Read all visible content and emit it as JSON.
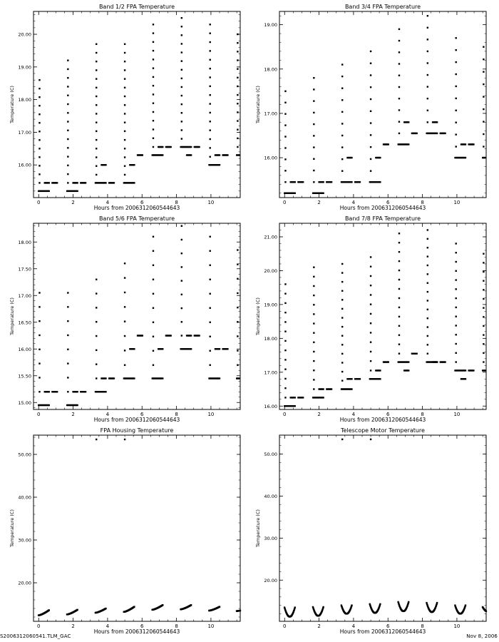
{
  "page": {
    "footer_left": "S2006312060541.TLM_GAC",
    "footer_right": "Nov  8, 2006"
  },
  "chart_data": [
    {
      "type": "scatter",
      "title": "Band 1/2 FPA Temperature",
      "xlabel": "Hours from 2006312060544643",
      "ylabel": "Temperature (C)",
      "xlim": [
        -0.3,
        11.7
      ],
      "ylim": [
        15.0,
        20.7
      ],
      "xticks": [
        0,
        2,
        4,
        6,
        8,
        10
      ],
      "xtick_labels": [
        "0",
        "2",
        "4",
        "6",
        "8",
        "10"
      ],
      "yticks": [
        16,
        17,
        18,
        19,
        20
      ],
      "ytick_labels": [
        "16.00",
        "17.00",
        "18.00",
        "19.00",
        "20.00"
      ],
      "cycle_period_h": 1.65,
      "cycles": [
        {
          "t": 0.05,
          "floor": 15.2,
          "ramp_top": 18.6,
          "step": 15.45,
          "plateau": 15.45
        },
        {
          "t": 1.7,
          "floor": 15.2,
          "ramp_top": 19.2,
          "step": 15.45,
          "plateau": 15.45
        },
        {
          "t": 3.35,
          "floor": 15.45,
          "ramp_top": 19.7,
          "step": 16.0,
          "plateau": 15.45
        },
        {
          "t": 5.0,
          "floor": 15.45,
          "ramp_top": 19.7,
          "step": 16.0,
          "plateau": 16.3
        },
        {
          "t": 6.65,
          "floor": 16.3,
          "ramp_top": 20.3,
          "step": 16.55,
          "plateau": 16.55
        },
        {
          "t": 8.3,
          "floor": 16.55,
          "ramp_top": 20.5,
          "step": 16.3,
          "plateau": 16.55
        },
        {
          "t": 9.95,
          "floor": 16.0,
          "ramp_top": 20.3,
          "step": 16.3,
          "plateau": 16.3
        },
        {
          "t": 11.55,
          "floor": 16.3,
          "ramp_top": 20.0,
          "step": 16.3,
          "plateau": 16.3
        }
      ]
    },
    {
      "type": "scatter",
      "title": "Band 3/4 FPA Temperature",
      "xlabel": "Hours from 2006312060544643",
      "ylabel": "Temperature (C)",
      "xlim": [
        -0.3,
        11.7
      ],
      "ylim": [
        15.1,
        19.3
      ],
      "xticks": [
        0,
        2,
        4,
        6,
        8,
        10
      ],
      "xtick_labels": [
        "0",
        "2",
        "4",
        "6",
        "8",
        "10"
      ],
      "yticks": [
        16,
        17,
        18,
        19
      ],
      "ytick_labels": [
        "16.00",
        "17.00",
        "18.00",
        "19.00"
      ],
      "cycle_period_h": 1.65,
      "cycles": [
        {
          "t": 0.05,
          "floor": 15.2,
          "ramp_top": 17.5,
          "step": 15.45,
          "plateau": 15.45
        },
        {
          "t": 1.7,
          "floor": 15.2,
          "ramp_top": 17.8,
          "step": 15.45,
          "plateau": 15.45
        },
        {
          "t": 3.35,
          "floor": 15.45,
          "ramp_top": 18.1,
          "step": 16.0,
          "plateau": 15.45
        },
        {
          "t": 5.0,
          "floor": 15.45,
          "ramp_top": 18.4,
          "step": 16.0,
          "plateau": 16.3
        },
        {
          "t": 6.65,
          "floor": 16.3,
          "ramp_top": 18.9,
          "step": 16.8,
          "plateau": 16.55
        },
        {
          "t": 8.3,
          "floor": 16.55,
          "ramp_top": 19.2,
          "step": 16.8,
          "plateau": 16.55
        },
        {
          "t": 9.95,
          "floor": 16.0,
          "ramp_top": 18.7,
          "step": 16.3,
          "plateau": 16.3
        },
        {
          "t": 11.55,
          "floor": 16.0,
          "ramp_top": 18.5,
          "step": 16.3,
          "plateau": 16.3
        }
      ]
    },
    {
      "type": "scatter",
      "title": "Band 5/6 FPA Temperature",
      "xlabel": "Hours from 2006312060544643",
      "ylabel": "Temperature (C)",
      "xlim": [
        -0.3,
        11.7
      ],
      "ylim": [
        14.87,
        18.35
      ],
      "xticks": [
        0,
        2,
        4,
        6,
        8,
        10
      ],
      "xtick_labels": [
        "0",
        "2",
        "4",
        "6",
        "8",
        "10"
      ],
      "yticks": [
        15,
        15.5,
        16,
        16.5,
        17,
        17.5,
        18
      ],
      "ytick_labels": [
        "15.00",
        "15.50",
        "16.00",
        "16.50",
        "17.00",
        "17.50",
        "18.00"
      ],
      "cycle_period_h": 1.65,
      "cycles": [
        {
          "t": 0.05,
          "floor": 14.95,
          "ramp_top": 17.05,
          "step": 15.2,
          "plateau": 15.2
        },
        {
          "t": 1.7,
          "floor": 14.95,
          "ramp_top": 17.05,
          "step": 15.2,
          "plateau": 15.2
        },
        {
          "t": 3.35,
          "floor": 15.2,
          "ramp_top": 17.3,
          "step": 15.45,
          "plateau": 15.45
        },
        {
          "t": 5.0,
          "floor": 15.45,
          "ramp_top": 17.6,
          "step": 16.0,
          "plateau": 16.25
        },
        {
          "t": 6.65,
          "floor": 15.45,
          "ramp_top": 18.1,
          "step": 16.0,
          "plateau": 16.25
        },
        {
          "t": 8.3,
          "floor": 16.0,
          "ramp_top": 18.3,
          "step": 16.25,
          "plateau": 16.25
        },
        {
          "t": 9.95,
          "floor": 15.45,
          "ramp_top": 18.1,
          "step": 16.0,
          "plateau": 16.0
        },
        {
          "t": 11.55,
          "floor": 15.45,
          "ramp_top": 17.85,
          "step": 16.0,
          "plateau": 16.0
        }
      ]
    },
    {
      "type": "scatter",
      "title": "Band 7/8 FPA Temperature",
      "xlabel": "Hours from 2006312060544643",
      "ylabel": "Temperature (C)",
      "xlim": [
        -0.3,
        11.7
      ],
      "ylim": [
        15.9,
        21.4
      ],
      "xticks": [
        0,
        2,
        4,
        6,
        8,
        10
      ],
      "xtick_labels": [
        "0",
        "2",
        "4",
        "6",
        "8",
        "10"
      ],
      "yticks": [
        16,
        17,
        18,
        19,
        20,
        21
      ],
      "ytick_labels": [
        "16.00",
        "17.00",
        "18.00",
        "19.00",
        "20.00",
        "21.00"
      ],
      "cycle_period_h": 1.65,
      "cycles": [
        {
          "t": 0.05,
          "floor": 16.0,
          "ramp_top": 19.6,
          "step": 16.25,
          "plateau": 16.25
        },
        {
          "t": 1.7,
          "floor": 16.25,
          "ramp_top": 20.1,
          "step": 16.5,
          "plateau": 16.5
        },
        {
          "t": 3.35,
          "floor": 16.5,
          "ramp_top": 20.2,
          "step": 16.8,
          "plateau": 16.8
        },
        {
          "t": 5.0,
          "floor": 16.8,
          "ramp_top": 20.4,
          "step": 17.05,
          "plateau": 17.3
        },
        {
          "t": 6.65,
          "floor": 17.3,
          "ramp_top": 21.1,
          "step": 17.05,
          "plateau": 17.55
        },
        {
          "t": 8.3,
          "floor": 17.3,
          "ramp_top": 21.2,
          "step": 17.3,
          "plateau": 17.3
        },
        {
          "t": 9.95,
          "floor": 17.05,
          "ramp_top": 20.8,
          "step": 16.8,
          "plateau": 17.05
        },
        {
          "t": 11.55,
          "floor": 17.05,
          "ramp_top": 20.5,
          "step": 17.3,
          "plateau": 17.3
        }
      ]
    },
    {
      "type": "scatter",
      "title": "FPA Housing Temperature",
      "xlabel": "Hours from 2006312060544643",
      "ylabel": "Temperature (C)",
      "xlim": [
        -0.3,
        11.7
      ],
      "ylim": [
        11.0,
        54.5
      ],
      "xticks": [
        0,
        2,
        4,
        6,
        8,
        10
      ],
      "xtick_labels": [
        "0",
        "2",
        "4",
        "6",
        "8",
        "10"
      ],
      "yticks": [
        20,
        30,
        40,
        50
      ],
      "ytick_labels": [
        "20.00",
        "30.00",
        "40.00",
        "50.00"
      ],
      "segment_shape": "ramp",
      "segment_half_width_h": 0.55,
      "segments": [
        {
          "t": 0.05,
          "low": 12.4,
          "high": 13.6
        },
        {
          "t": 1.7,
          "low": 12.6,
          "high": 13.7
        },
        {
          "t": 3.35,
          "low": 13.0,
          "high": 14.0
        },
        {
          "t": 5.0,
          "low": 13.2,
          "high": 14.4
        },
        {
          "t": 6.65,
          "low": 13.7,
          "high": 14.8
        },
        {
          "t": 8.3,
          "low": 13.8,
          "high": 14.8
        },
        {
          "t": 9.95,
          "low": 13.5,
          "high": 14.4
        },
        {
          "t": 11.55,
          "low": 13.4,
          "high": 13.9
        }
      ],
      "outliers": [
        {
          "x": 3.35,
          "y": 53.5
        },
        {
          "x": 5.0,
          "y": 53.5
        }
      ]
    },
    {
      "type": "scatter",
      "title": "Telescope Motor Temperature",
      "xlabel": "Hours from 2006312060544643",
      "ylabel": "Temperature (C)",
      "xlim": [
        -0.3,
        11.7
      ],
      "ylim": [
        10.2,
        54.5
      ],
      "xticks": [
        0,
        2,
        4,
        6,
        8,
        10
      ],
      "xtick_labels": [
        "0",
        "2",
        "4",
        "6",
        "8",
        "10"
      ],
      "yticks": [
        20,
        30,
        40,
        50
      ],
      "ytick_labels": [
        "20.00",
        "30.00",
        "40.00",
        "50.00"
      ],
      "segment_shape": "bowl",
      "segment_half_width_h": 0.55,
      "segments": [
        {
          "t": 0.05,
          "low": 11.3,
          "high": 13.5
        },
        {
          "t": 1.7,
          "low": 11.5,
          "high": 13.6
        },
        {
          "t": 3.35,
          "low": 12.0,
          "high": 14.0
        },
        {
          "t": 5.0,
          "low": 12.2,
          "high": 14.3
        },
        {
          "t": 6.65,
          "low": 12.6,
          "high": 14.8
        },
        {
          "t": 8.3,
          "low": 12.4,
          "high": 14.6
        },
        {
          "t": 9.95,
          "low": 12.0,
          "high": 14.0
        },
        {
          "t": 11.55,
          "low": 12.5,
          "high": 13.6
        }
      ],
      "outliers": [
        {
          "x": 3.35,
          "y": 53.5
        },
        {
          "x": 5.0,
          "y": 53.5
        }
      ]
    }
  ]
}
